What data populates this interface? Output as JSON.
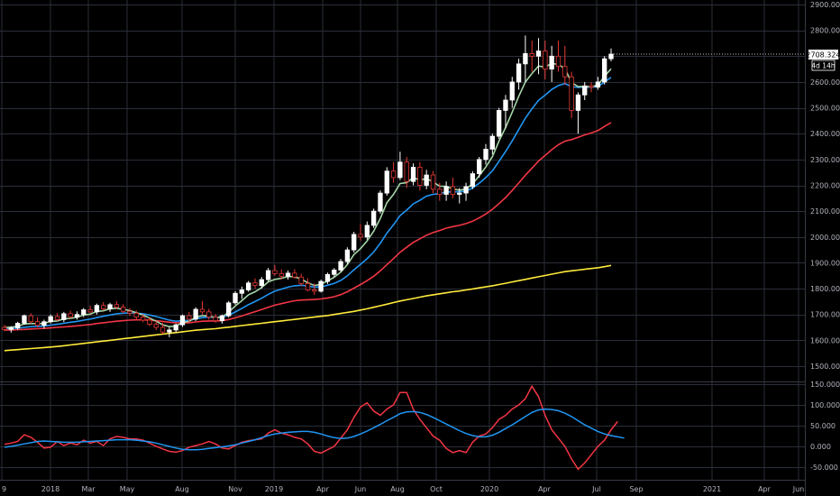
{
  "chart_data": [
    {
      "type": "candlestick",
      "panel": "price",
      "title": "",
      "xlabel": "",
      "ylabel": "",
      "ylim": [
        1430,
        2925
      ],
      "y_ticks": [
        "1500.000",
        "1600.000",
        "1700.000",
        "1800.000",
        "1900.000",
        "2000.000",
        "2100.000",
        "2200.000",
        "2300.000",
        "2400.000",
        "2500.000",
        "2600.000",
        "2700.000",
        "2800.000",
        "2900.000"
      ],
      "grid": true,
      "current_price": "2708.324",
      "countdown": "4d 14h",
      "colors": {
        "up": "#ffffff",
        "down": "#e53935",
        "ema_fast": "#a5d6a7",
        "ema_mid": "#2196f3",
        "ema_slow": "#f23645",
        "sma_long": "#ffeb3b",
        "price_label_bg": "#ffffff"
      },
      "candles_ohlc": [
        [
          1650,
          1660,
          1635,
          1642
        ],
        [
          1642,
          1655,
          1630,
          1648
        ],
        [
          1648,
          1672,
          1640,
          1666
        ],
        [
          1666,
          1700,
          1660,
          1695
        ],
        [
          1695,
          1705,
          1665,
          1672
        ],
        [
          1672,
          1690,
          1650,
          1658
        ],
        [
          1658,
          1680,
          1645,
          1672
        ],
        [
          1672,
          1700,
          1665,
          1692
        ],
        [
          1692,
          1705,
          1675,
          1680
        ],
        [
          1680,
          1710,
          1670,
          1703
        ],
        [
          1703,
          1715,
          1685,
          1690
        ],
        [
          1690,
          1712,
          1680,
          1700
        ],
        [
          1700,
          1725,
          1690,
          1718
        ],
        [
          1718,
          1735,
          1705,
          1710
        ],
        [
          1710,
          1742,
          1700,
          1735
        ],
        [
          1735,
          1748,
          1715,
          1722
        ],
        [
          1722,
          1745,
          1710,
          1738
        ],
        [
          1738,
          1752,
          1720,
          1728
        ],
        [
          1728,
          1740,
          1705,
          1712
        ],
        [
          1712,
          1725,
          1695,
          1705
        ],
        [
          1705,
          1715,
          1680,
          1690
        ],
        [
          1690,
          1702,
          1670,
          1678
        ],
        [
          1678,
          1690,
          1655,
          1662
        ],
        [
          1662,
          1675,
          1640,
          1650
        ],
        [
          1650,
          1668,
          1625,
          1632
        ],
        [
          1632,
          1650,
          1612,
          1640
        ],
        [
          1640,
          1665,
          1630,
          1660
        ],
        [
          1660,
          1700,
          1652,
          1695
        ],
        [
          1695,
          1710,
          1670,
          1682
        ],
        [
          1682,
          1728,
          1675,
          1720
        ],
        [
          1720,
          1752,
          1700,
          1710
        ],
        [
          1710,
          1722,
          1680,
          1690
        ],
        [
          1690,
          1702,
          1668,
          1676
        ],
        [
          1676,
          1700,
          1665,
          1695
        ],
        [
          1695,
          1752,
          1688,
          1745
        ],
        [
          1745,
          1790,
          1738,
          1782
        ],
        [
          1782,
          1808,
          1760,
          1795
        ],
        [
          1795,
          1830,
          1788,
          1822
        ],
        [
          1822,
          1840,
          1800,
          1812
        ],
        [
          1812,
          1845,
          1800,
          1835
        ],
        [
          1835,
          1880,
          1828,
          1870
        ],
        [
          1870,
          1892,
          1850,
          1858
        ],
        [
          1858,
          1875,
          1835,
          1848
        ],
        [
          1848,
          1870,
          1835,
          1860
        ],
        [
          1860,
          1875,
          1838,
          1845
        ],
        [
          1845,
          1858,
          1810,
          1820
        ],
        [
          1820,
          1840,
          1790,
          1795
        ],
        [
          1795,
          1820,
          1775,
          1790
        ],
        [
          1790,
          1835,
          1785,
          1828
        ],
        [
          1828,
          1862,
          1818,
          1855
        ],
        [
          1855,
          1880,
          1845,
          1872
        ],
        [
          1872,
          1915,
          1865,
          1905
        ],
        [
          1905,
          1960,
          1895,
          1950
        ],
        [
          1950,
          2020,
          1940,
          2010
        ],
        [
          2010,
          2050,
          1985,
          2000
        ],
        [
          2000,
          2060,
          1990,
          2045
        ],
        [
          2045,
          2110,
          2035,
          2100
        ],
        [
          2100,
          2180,
          2090,
          2170
        ],
        [
          2170,
          2270,
          2160,
          2255
        ],
        [
          2255,
          2290,
          2210,
          2230
        ],
        [
          2230,
          2330,
          2220,
          2290
        ],
        [
          2290,
          2310,
          2190,
          2215
        ],
        [
          2215,
          2285,
          2200,
          2270
        ],
        [
          2270,
          2290,
          2180,
          2200
        ],
        [
          2200,
          2260,
          2185,
          2240
        ],
        [
          2240,
          2255,
          2170,
          2185
        ],
        [
          2185,
          2210,
          2140,
          2165
        ],
        [
          2165,
          2215,
          2140,
          2195
        ],
        [
          2195,
          2230,
          2150,
          2165
        ],
        [
          2165,
          2190,
          2130,
          2170
        ],
        [
          2170,
          2210,
          2140,
          2195
        ],
        [
          2195,
          2255,
          2185,
          2245
        ],
        [
          2245,
          2310,
          2230,
          2300
        ],
        [
          2300,
          2360,
          2280,
          2340
        ],
        [
          2340,
          2400,
          2320,
          2390
        ],
        [
          2390,
          2500,
          2380,
          2490
        ],
        [
          2490,
          2550,
          2420,
          2530
        ],
        [
          2530,
          2620,
          2500,
          2600
        ],
        [
          2600,
          2690,
          2570,
          2670
        ],
        [
          2670,
          2780,
          2600,
          2710
        ],
        [
          2710,
          2760,
          2640,
          2700
        ],
        [
          2700,
          2770,
          2630,
          2720
        ],
        [
          2720,
          2760,
          2610,
          2650
        ],
        [
          2650,
          2740,
          2600,
          2700
        ],
        [
          2700,
          2760,
          2640,
          2660
        ],
        [
          2660,
          2740,
          2590,
          2620
        ],
        [
          2620,
          2640,
          2460,
          2490
        ],
        [
          2490,
          2560,
          2400,
          2550
        ],
        [
          2550,
          2600,
          2530,
          2585
        ],
        [
          2585,
          2600,
          2560,
          2580
        ],
        [
          2580,
          2620,
          2570,
          2600
        ],
        [
          2600,
          2700,
          2590,
          2690
        ],
        [
          2690,
          2730,
          2680,
          2708
        ]
      ],
      "series": [
        {
          "name": "",
          "color": "#a5d6a7",
          "y": [
            1650,
            1651,
            1654,
            1663,
            1665,
            1664,
            1666,
            1673,
            1675,
            1683,
            1685,
            1689,
            1698,
            1701,
            1712,
            1714,
            1722,
            1724,
            1720,
            1715,
            1707,
            1698,
            1686,
            1674,
            1660,
            1653,
            1655,
            1669,
            1673,
            1689,
            1696,
            1694,
            1688,
            1690,
            1709,
            1733,
            1753,
            1776,
            1788,
            1804,
            1826,
            1836,
            1840,
            1847,
            1846,
            1837,
            1823,
            1812,
            1817,
            1830,
            1844,
            1864,
            1893,
            1932,
            1955,
            1985,
            2023,
            2072,
            2133,
            2165,
            2207,
            2210,
            2230,
            2220,
            2227,
            2213,
            2197,
            2196,
            2186,
            2181,
            2186,
            2206,
            2237,
            2271,
            2311,
            2371,
            2424,
            2483,
            2545,
            2600,
            2633,
            2662,
            2658,
            2672,
            2668,
            2652,
            2598,
            2582,
            2583,
            2582,
            2588,
            2622,
            2651
          ]
        },
        {
          "name": "",
          "color": "#2196f3",
          "y": [
            1645,
            1646,
            1647,
            1650,
            1653,
            1654,
            1655,
            1659,
            1662,
            1666,
            1670,
            1673,
            1678,
            1682,
            1688,
            1693,
            1698,
            1703,
            1705,
            1706,
            1705,
            1703,
            1698,
            1692,
            1685,
            1678,
            1674,
            1676,
            1677,
            1683,
            1688,
            1690,
            1689,
            1690,
            1697,
            1710,
            1723,
            1738,
            1750,
            1763,
            1778,
            1790,
            1798,
            1806,
            1811,
            1813,
            1810,
            1806,
            1807,
            1813,
            1820,
            1832,
            1850,
            1873,
            1894,
            1916,
            1942,
            1976,
            2015,
            2047,
            2083,
            2104,
            2128,
            2142,
            2158,
            2165,
            2168,
            2174,
            2175,
            2175,
            2178,
            2190,
            2208,
            2230,
            2256,
            2293,
            2331,
            2372,
            2416,
            2460,
            2496,
            2529,
            2549,
            2571,
            2586,
            2594,
            2582,
            2579,
            2580,
            2580,
            2582,
            2600,
            2618
          ]
        },
        {
          "name": "",
          "color": "#f23645",
          "y": [
            1640,
            1640,
            1641,
            1642,
            1644,
            1645,
            1646,
            1648,
            1650,
            1652,
            1654,
            1656,
            1659,
            1661,
            1665,
            1668,
            1671,
            1674,
            1676,
            1678,
            1679,
            1679,
            1678,
            1676,
            1673,
            1670,
            1668,
            1668,
            1668,
            1671,
            1674,
            1675,
            1675,
            1676,
            1680,
            1687,
            1694,
            1703,
            1711,
            1719,
            1728,
            1736,
            1742,
            1748,
            1753,
            1756,
            1757,
            1758,
            1760,
            1764,
            1769,
            1777,
            1788,
            1802,
            1816,
            1831,
            1848,
            1869,
            1893,
            1916,
            1941,
            1960,
            1979,
            1993,
            2007,
            2017,
            2025,
            2034,
            2040,
            2045,
            2052,
            2061,
            2074,
            2089,
            2107,
            2129,
            2153,
            2180,
            2209,
            2239,
            2266,
            2294,
            2316,
            2338,
            2357,
            2371,
            2377,
            2386,
            2395,
            2403,
            2412,
            2428,
            2443
          ]
        },
        {
          "name": "",
          "color": "#ffeb3b",
          "y": [
            1560,
            1562,
            1564,
            1566,
            1568,
            1570,
            1572,
            1574,
            1576,
            1579,
            1582,
            1585,
            1588,
            1591,
            1594,
            1597,
            1600,
            1603,
            1606,
            1609,
            1612,
            1615,
            1618,
            1621,
            1624,
            1627,
            1630,
            1633,
            1636,
            1639,
            1641,
            1643,
            1645,
            1648,
            1651,
            1654,
            1657,
            1660,
            1663,
            1666,
            1669,
            1672,
            1675,
            1678,
            1681,
            1684,
            1687,
            1690,
            1693,
            1696,
            1700,
            1704,
            1708,
            1712,
            1717,
            1722,
            1728,
            1734,
            1740,
            1746,
            1752,
            1757,
            1762,
            1767,
            1772,
            1776,
            1780,
            1784,
            1788,
            1791,
            1795,
            1799,
            1803,
            1807,
            1811,
            1816,
            1821,
            1826,
            1831,
            1836,
            1841,
            1846,
            1851,
            1856,
            1861,
            1866,
            1869,
            1872,
            1875,
            1878,
            1881,
            1885,
            1890
          ]
        }
      ]
    },
    {
      "type": "line",
      "panel": "oscillator",
      "title": "",
      "ylim": [
        -80,
        155
      ],
      "y_ticks": [
        "150.000",
        "100.000",
        "50.000",
        "0.000",
        "-50.000"
      ],
      "grid": true,
      "series": [
        {
          "name": "",
          "color": "#f23645",
          "y": [
            5,
            8,
            12,
            28,
            22,
            10,
            -4,
            -2,
            12,
            2,
            8,
            4,
            15,
            8,
            12,
            2,
            18,
            24,
            22,
            18,
            18,
            15,
            8,
            0,
            -6,
            -12,
            -14,
            -10,
            -2,
            2,
            6,
            12,
            6,
            -4,
            -6,
            2,
            10,
            14,
            16,
            18,
            32,
            40,
            32,
            28,
            22,
            18,
            6,
            -12,
            -16,
            -8,
            0,
            20,
            40,
            70,
            95,
            105,
            85,
            75,
            90,
            100,
            130,
            130,
            90,
            65,
            45,
            25,
            15,
            -5,
            -15,
            -10,
            -15,
            10,
            25,
            30,
            45,
            65,
            75,
            90,
            100,
            115,
            145,
            120,
            75,
            40,
            20,
            0,
            -30,
            -55,
            -40,
            -20,
            0,
            15,
            40,
            60
          ]
        },
        {
          "name": "",
          "color": "#2196f3",
          "y": [
            -2,
            0,
            3,
            6,
            9,
            12,
            13,
            12,
            11,
            10,
            10,
            10,
            11,
            12,
            13,
            14,
            15,
            16,
            16,
            16,
            15,
            13,
            11,
            8,
            4,
            0,
            -4,
            -7,
            -8,
            -8,
            -7,
            -5,
            -3,
            -1,
            1,
            4,
            8,
            12,
            16,
            21,
            26,
            30,
            32,
            34,
            35,
            36,
            36,
            34,
            30,
            25,
            21,
            19,
            20,
            24,
            30,
            37,
            45,
            53,
            62,
            70,
            79,
            83,
            84,
            82,
            77,
            70,
            62,
            54,
            46,
            38,
            31,
            26,
            23,
            23,
            27,
            34,
            43,
            52,
            62,
            72,
            82,
            88,
            90,
            89,
            86,
            80,
            72,
            62,
            52,
            44,
            36,
            30,
            26,
            23,
            20
          ]
        }
      ]
    }
  ],
  "x_axis": {
    "labels": [
      "9",
      "2018",
      "Mar",
      "May",
      "Aug",
      "Nov",
      "2019",
      "Apr",
      "Jun",
      "Aug",
      "Oct",
      "2020",
      "Apr",
      "Jul",
      "Sep",
      "2021",
      "Apr",
      "Jun"
    ]
  }
}
